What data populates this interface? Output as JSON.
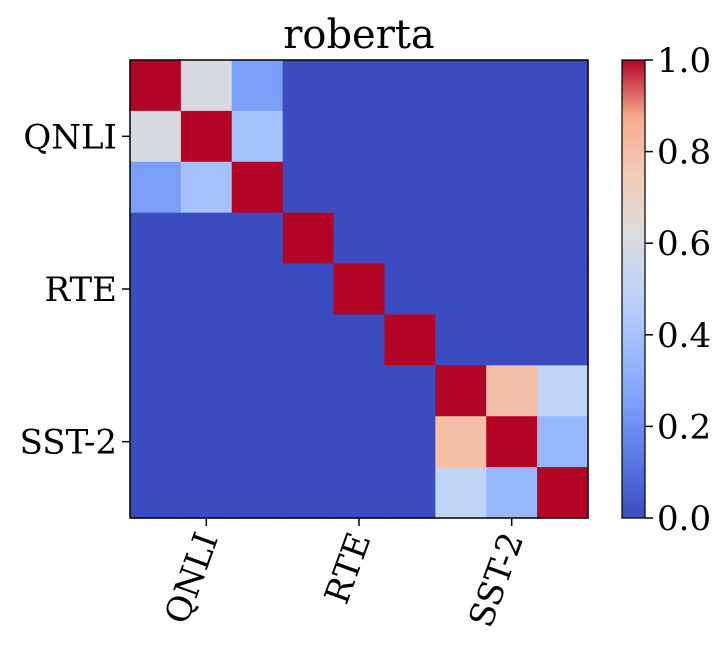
{
  "chart_data": {
    "type": "heatmap",
    "title": "roberta",
    "xlabel": "",
    "ylabel": "",
    "x_tick_labels": [
      "QNLI",
      "RTE",
      "SST-2"
    ],
    "y_tick_labels": [
      "QNLI",
      "RTE",
      "SST-2"
    ],
    "matrix": [
      [
        1.0,
        0.6,
        0.25,
        0,
        0,
        0,
        0,
        0,
        0
      ],
      [
        0.6,
        1.0,
        0.4,
        0,
        0,
        0,
        0,
        0,
        0
      ],
      [
        0.25,
        0.4,
        1.0,
        0,
        0,
        0,
        0,
        0,
        0
      ],
      [
        0,
        0,
        0,
        1.0,
        0,
        0,
        0,
        0,
        0
      ],
      [
        0,
        0,
        0,
        0,
        1.0,
        0,
        0,
        0,
        0
      ],
      [
        0,
        0,
        0,
        0,
        0,
        1.0,
        0,
        0,
        0
      ],
      [
        0,
        0,
        0,
        0,
        0,
        0,
        1.0,
        0.8,
        0.5
      ],
      [
        0,
        0,
        0,
        0,
        0,
        0,
        0.8,
        1.0,
        0.35
      ],
      [
        0,
        0,
        0,
        0,
        0,
        0,
        0.5,
        0.35,
        1.0
      ]
    ],
    "colormap": "coolwarm",
    "colorbar": {
      "range": [
        0.0,
        1.0
      ],
      "ticks": [
        0.0,
        0.2,
        0.4,
        0.6,
        0.8,
        1.0
      ],
      "tick_labels": [
        "0.0",
        "0.2",
        "0.4",
        "0.6",
        "0.8",
        "1.0"
      ]
    },
    "grid": false
  }
}
